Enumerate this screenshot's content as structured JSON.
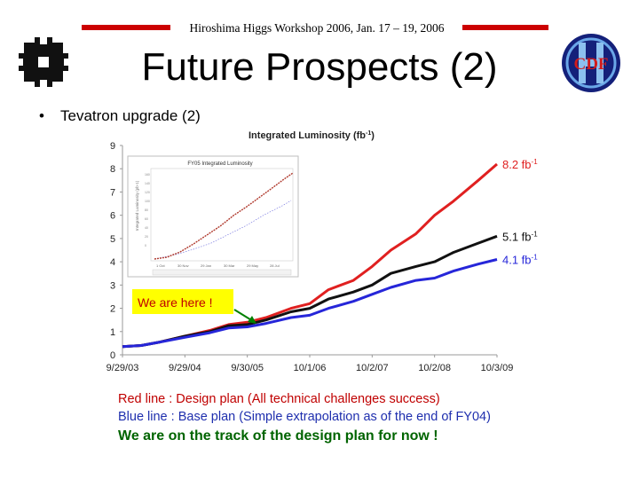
{
  "header": {
    "workshop": "Hiroshima Higgs Workshop 2006, Jan. 17 – 19, 2006",
    "title": "Future Prospects (2)",
    "accent_color": "#cc0000"
  },
  "logos": {
    "left": "fermilab-logo",
    "right_text": "CDF"
  },
  "bullet": {
    "text": "Tevatron upgrade (2)"
  },
  "chart_data": {
    "type": "line",
    "title": "Integrated Luminosity (fb",
    "title_sup": "-1",
    "title_end": ")",
    "x_ticks": [
      "9/29/03",
      "9/29/04",
      "9/30/05",
      "10/1/06",
      "10/2/07",
      "10/2/08",
      "10/3/09"
    ],
    "y_ticks": [
      "0",
      "1",
      "2",
      "3",
      "4",
      "5",
      "6",
      "7",
      "8",
      "9"
    ],
    "ylim": [
      0,
      9
    ],
    "x_years": [
      0,
      6
    ],
    "grid": false,
    "series": [
      {
        "color": "#e02020",
        "points": [
          [
            0,
            0.35
          ],
          [
            0.3,
            0.4
          ],
          [
            0.6,
            0.55
          ],
          [
            1,
            0.8
          ],
          [
            1.4,
            1.05
          ],
          [
            1.7,
            1.3
          ],
          [
            2.0,
            1.4
          ],
          [
            2.3,
            1.6
          ],
          [
            2.7,
            2.0
          ],
          [
            3.0,
            2.2
          ],
          [
            3.3,
            2.8
          ],
          [
            3.7,
            3.2
          ],
          [
            4.0,
            3.8
          ],
          [
            4.3,
            4.5
          ],
          [
            4.7,
            5.2
          ],
          [
            5.0,
            6.0
          ],
          [
            5.3,
            6.6
          ],
          [
            5.7,
            7.5
          ],
          [
            6.0,
            8.2
          ]
        ],
        "end_value": "8.2 fb",
        "end_sup": "-1"
      },
      {
        "color": "#111111",
        "points": [
          [
            0,
            0.35
          ],
          [
            0.3,
            0.4
          ],
          [
            0.6,
            0.55
          ],
          [
            1,
            0.8
          ],
          [
            1.4,
            1.0
          ],
          [
            1.7,
            1.25
          ],
          [
            2.0,
            1.3
          ],
          [
            2.3,
            1.5
          ],
          [
            2.7,
            1.85
          ],
          [
            3.0,
            2.0
          ],
          [
            3.3,
            2.4
          ],
          [
            3.7,
            2.7
          ],
          [
            4.0,
            3.0
          ],
          [
            4.3,
            3.5
          ],
          [
            4.7,
            3.8
          ],
          [
            5.0,
            4.0
          ],
          [
            5.3,
            4.4
          ],
          [
            5.7,
            4.8
          ],
          [
            6.0,
            5.1
          ]
        ],
        "end_value": "5.1 fb",
        "end_sup": "-1"
      },
      {
        "color": "#2626d9",
        "points": [
          [
            0,
            0.35
          ],
          [
            0.3,
            0.4
          ],
          [
            0.6,
            0.55
          ],
          [
            1,
            0.75
          ],
          [
            1.4,
            0.95
          ],
          [
            1.7,
            1.15
          ],
          [
            2.0,
            1.2
          ],
          [
            2.3,
            1.35
          ],
          [
            2.7,
            1.6
          ],
          [
            3.0,
            1.7
          ],
          [
            3.3,
            2.0
          ],
          [
            3.7,
            2.3
          ],
          [
            4.0,
            2.6
          ],
          [
            4.3,
            2.9
          ],
          [
            4.7,
            3.2
          ],
          [
            5.0,
            3.3
          ],
          [
            5.3,
            3.6
          ],
          [
            5.7,
            3.9
          ],
          [
            6.0,
            4.1
          ]
        ],
        "end_value": "4.1 fb",
        "end_sup": "-1"
      }
    ],
    "annotation": "We are here !",
    "inset": {
      "title": "FY05 Integrated Luminosity"
    }
  },
  "captions": {
    "red": "Red line : Design plan (All technical challenges success)",
    "blue": "Blue line : Base plan (Simple extrapolation as of the end of FY04)",
    "green": "We are on the track of  the design plan for now !"
  }
}
